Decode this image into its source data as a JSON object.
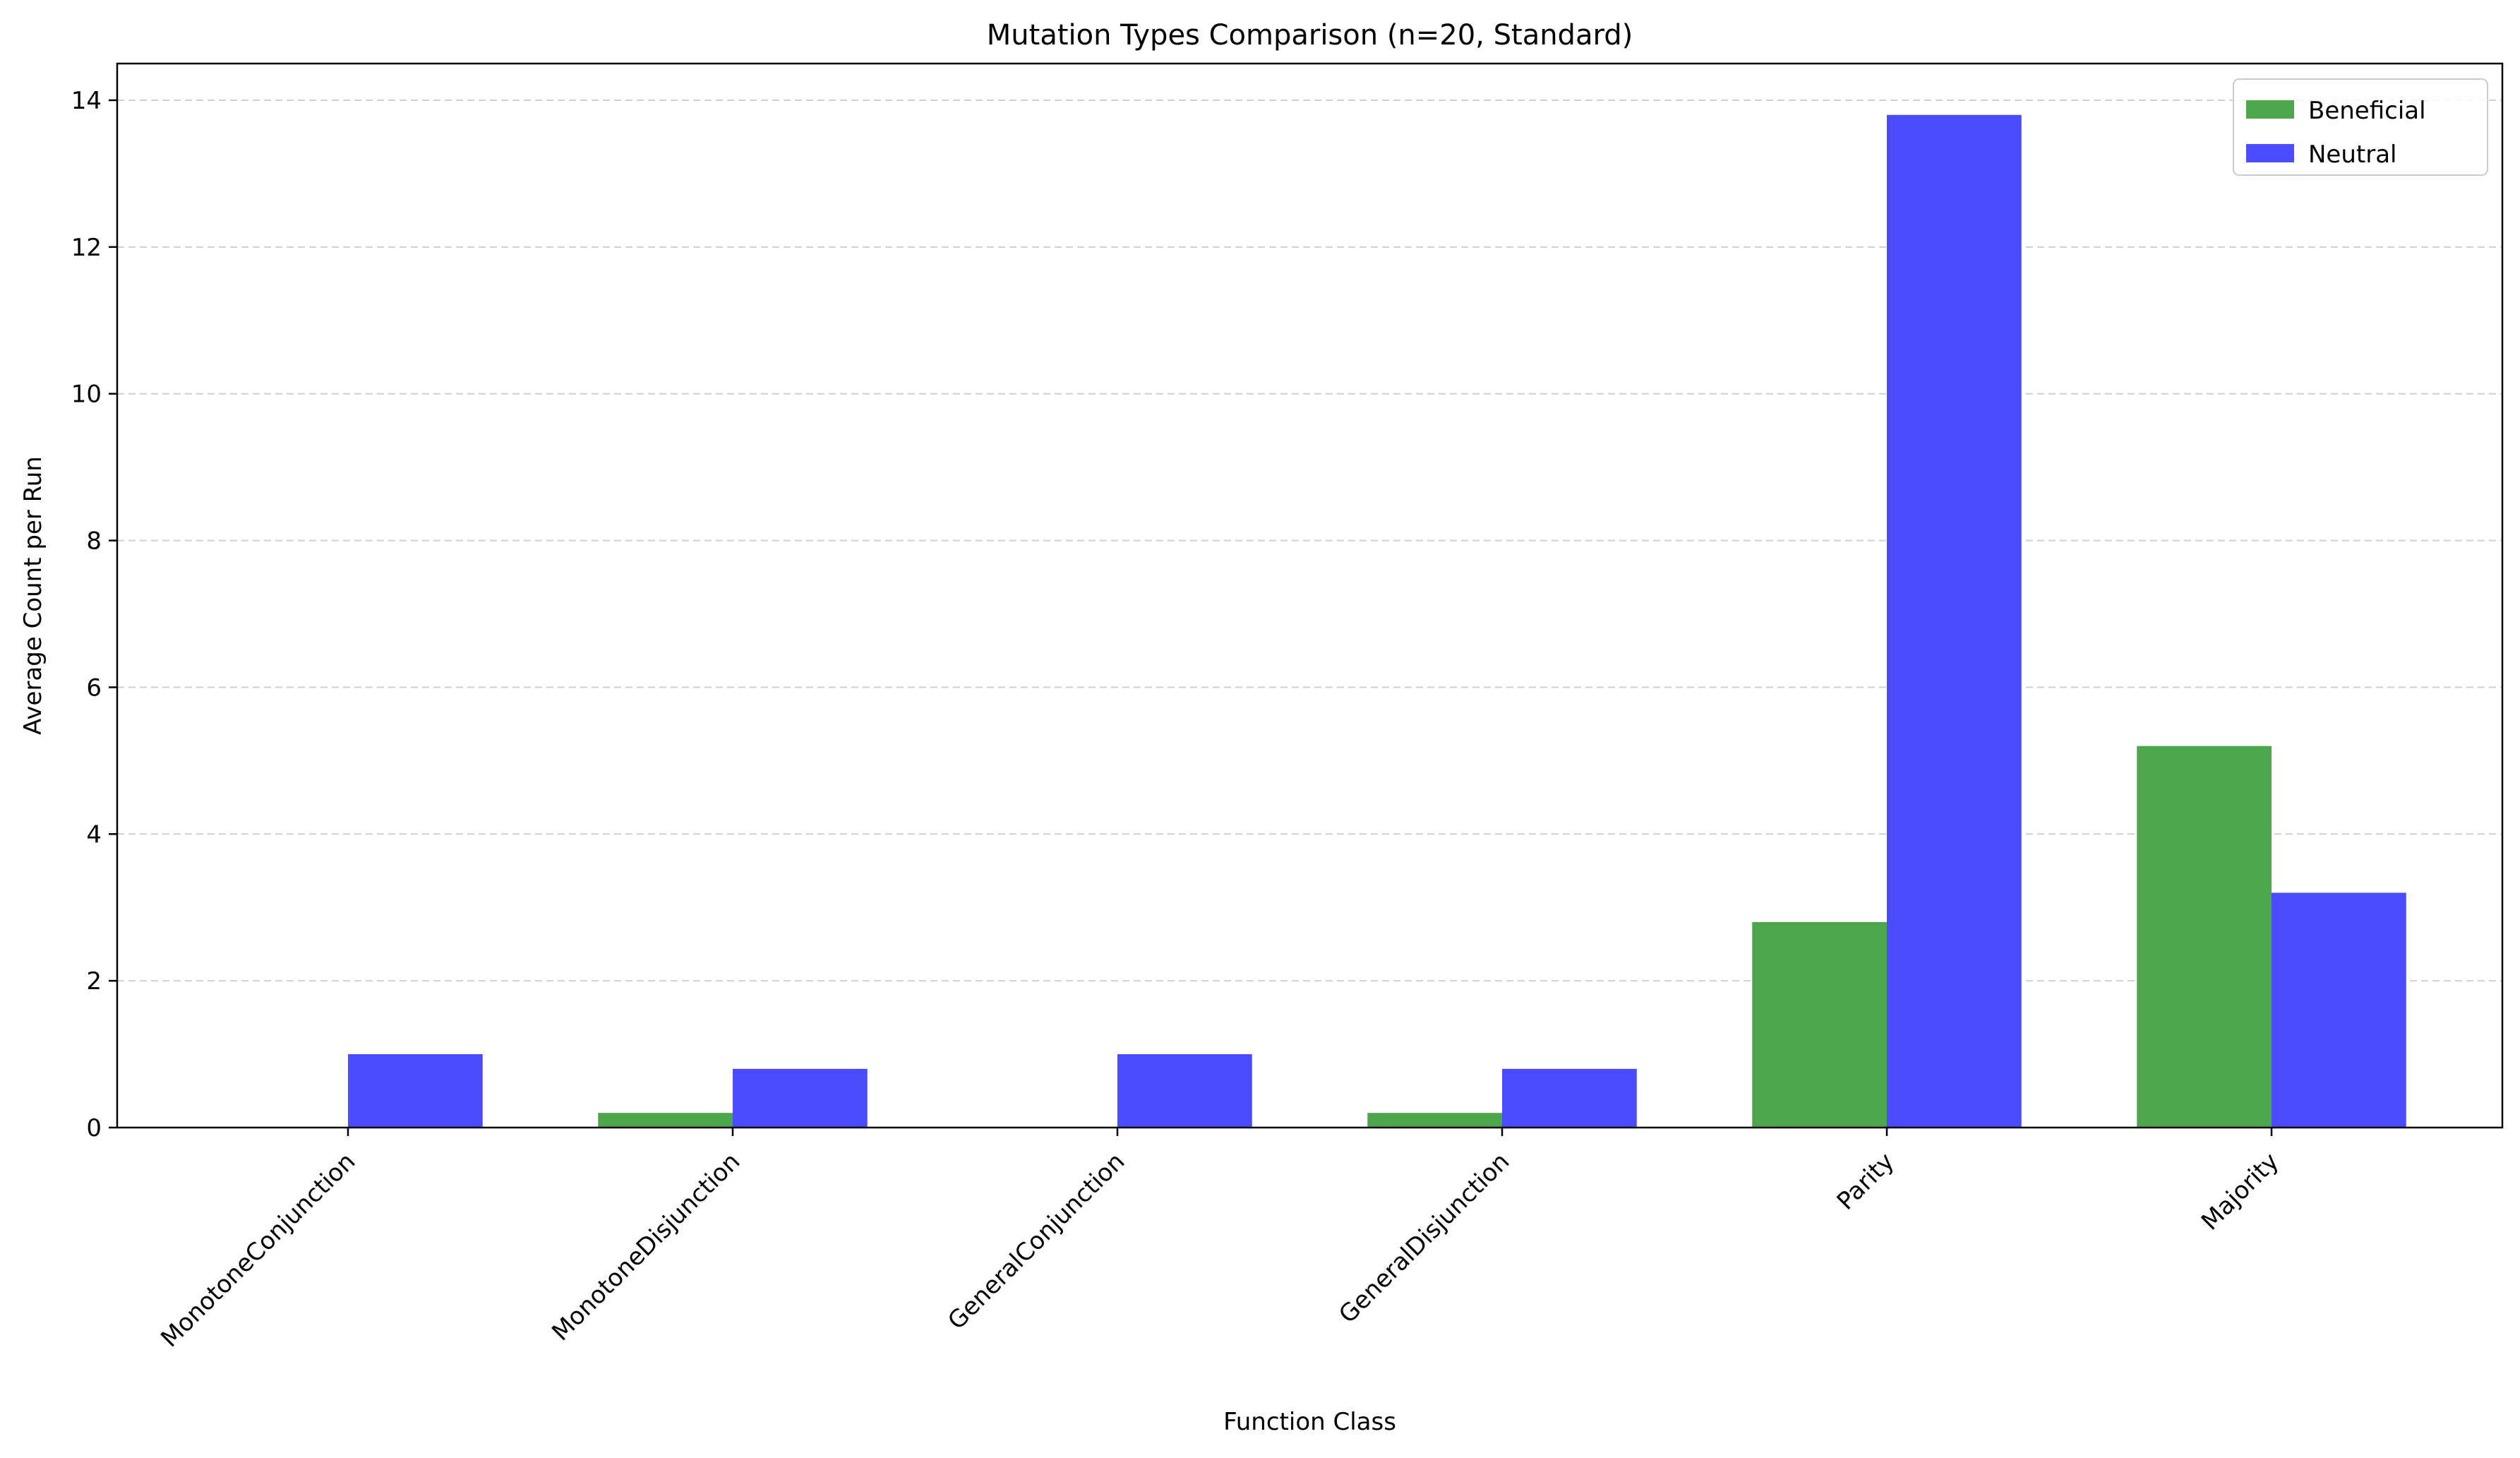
{
  "chart_data": {
    "type": "bar",
    "title": "Mutation Types Comparison (n=20, Standard)",
    "xlabel": "Function Class",
    "ylabel": "Average Count per Run",
    "categories": [
      "MonotoneConjunction",
      "MonotoneDisjunction",
      "GeneralConjunction",
      "GeneralDisjunction",
      "Parity",
      "Majority"
    ],
    "series": [
      {
        "name": "Beneficial",
        "color": "#4ca64c",
        "values": [
          0.0,
          0.2,
          0.0,
          0.2,
          2.8,
          5.2
        ]
      },
      {
        "name": "Neutral",
        "color": "#4b4bff",
        "values": [
          1.0,
          0.8,
          1.0,
          0.8,
          13.8,
          3.2
        ]
      }
    ],
    "ylim": [
      0,
      14.5
    ],
    "yticks": [
      0,
      2,
      4,
      6,
      8,
      10,
      12,
      14
    ],
    "grid": "y-dashed",
    "legend": "top-right"
  }
}
